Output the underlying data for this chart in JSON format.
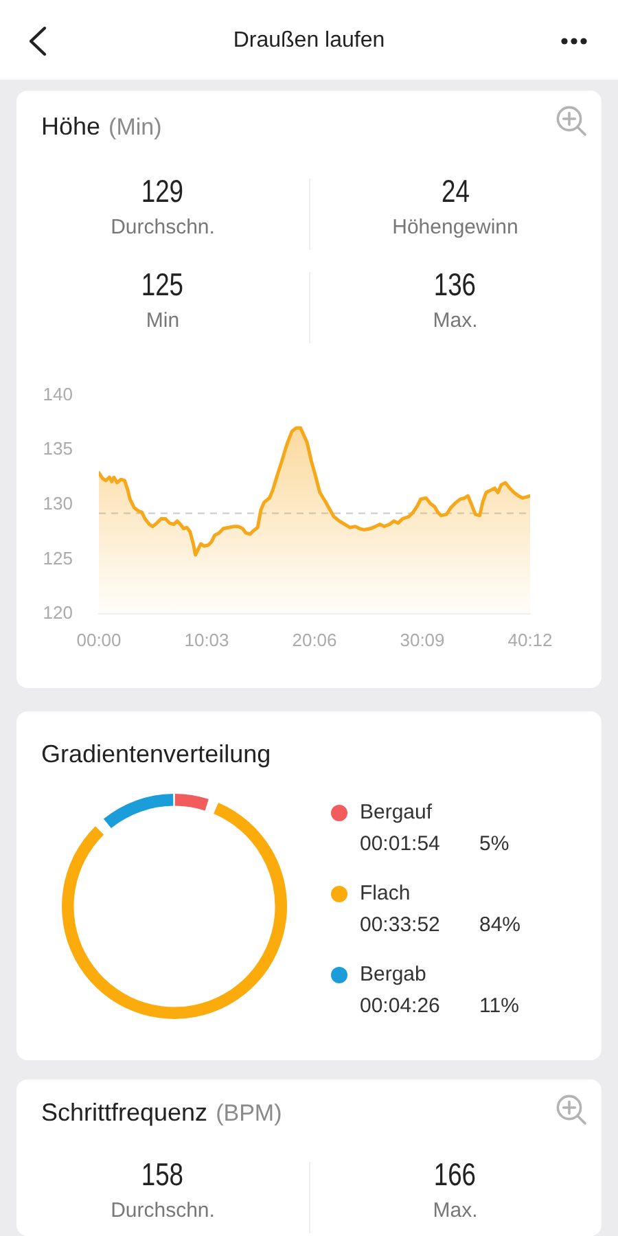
{
  "chart_data": [
    {
      "type": "other",
      "title": "Draußen laufen"
    },
    {
      "type": "area",
      "title": "Höhe",
      "subtitle": "(Min)",
      "annotations": [
        "129",
        "Durchschn.",
        "24",
        "Höhengewinn",
        "125",
        "Min",
        "136",
        "Max."
      ],
      "x": [
        0,
        0.34,
        0.64,
        0.98,
        1.2,
        1.4,
        1.7,
        2.05,
        2.4,
        2.7,
        2.9,
        3.3,
        3.7,
        4.0,
        4.3,
        4.7,
        5.0,
        5.4,
        5.8,
        6.2,
        6.6,
        7.0,
        7.3,
        7.6,
        7.9,
        8.2,
        8.5,
        8.8,
        9.0,
        9.2,
        9.5,
        9.8,
        10.2,
        10.5,
        10.8,
        11.2,
        11.6,
        12.1,
        12.6,
        13.0,
        13.4,
        13.7,
        14.1,
        14.4,
        14.8,
        15.1,
        15.4,
        15.9,
        16.2,
        16.6,
        17.0,
        17.4,
        17.6,
        18.0,
        18.4,
        18.8,
        19.4,
        19.8,
        20.2,
        20.6,
        21.1,
        21.5,
        21.9,
        22.4,
        22.9,
        23.4,
        23.9,
        24.3,
        24.7,
        25.3,
        25.8,
        26.2,
        26.6,
        27.1,
        27.5,
        27.9,
        28.3,
        28.9,
        29.3,
        29.7,
        30.0,
        30.5,
        30.9,
        31.3,
        31.6,
        31.9,
        32.4,
        32.8,
        33.3,
        33.7,
        34.1,
        34.4,
        34.7,
        35.1,
        35.5,
        35.8,
        36.1,
        36.5,
        36.9,
        37.2,
        37.5,
        37.9,
        38.3,
        38.7,
        39.1,
        39.5,
        39.9,
        40.2
      ],
      "values": [
        132.9,
        132.4,
        132.2,
        132.5,
        132.1,
        132.5,
        132.0,
        132.3,
        132.2,
        131.3,
        130.5,
        129.7,
        129.4,
        129.3,
        128.7,
        128.2,
        128.0,
        128.3,
        128.7,
        128.7,
        128.3,
        128.2,
        128.5,
        128.2,
        127.8,
        127.9,
        127.5,
        126.4,
        125.4,
        125.8,
        126.4,
        126.2,
        126.3,
        126.6,
        127.2,
        127.4,
        127.8,
        127.9,
        128.0,
        128.0,
        127.8,
        127.4,
        127.3,
        127.6,
        127.9,
        129.5,
        130.2,
        130.6,
        131.3,
        132.6,
        133.8,
        135.1,
        135.7,
        136.7,
        137.0,
        137.0,
        135.7,
        134.0,
        132.6,
        131.1,
        130.3,
        129.6,
        128.9,
        128.5,
        128.2,
        127.9,
        128.0,
        127.8,
        127.7,
        127.8,
        128.0,
        128.2,
        128.0,
        128.2,
        128.5,
        128.3,
        128.7,
        128.9,
        129.3,
        129.9,
        130.5,
        130.6,
        130.1,
        129.8,
        129.3,
        129.0,
        129.1,
        129.7,
        130.2,
        130.5,
        130.6,
        130.8,
        130.1,
        129.1,
        129.0,
        130.3,
        131.1,
        131.3,
        131.5,
        131.1,
        131.8,
        132.0,
        131.5,
        131.1,
        130.8,
        130.6,
        130.7,
        130.8
      ],
      "color": "#f6a81c",
      "xlim": [
        0,
        40.2
      ],
      "xticks": [
        {
          "value": 0,
          "label": "00:00"
        },
        {
          "value": 10.05,
          "label": "10:03"
        },
        {
          "value": 20.1,
          "label": "20:06"
        },
        {
          "value": 30.15,
          "label": "30:09"
        },
        {
          "value": 40.2,
          "label": "40:12"
        }
      ],
      "ylim": [
        120,
        140
      ],
      "yticks": [
        120,
        125,
        130,
        135,
        140
      ],
      "ref_lines": [
        {
          "axis": "y",
          "value": 129.2,
          "color": "#c8c8c8",
          "line_style": "dashed"
        }
      ]
    },
    {
      "type": "donut",
      "title": "Gradientenverteilung",
      "categories": [
        "Bergauf",
        "Flach",
        "Bergab"
      ],
      "values": [
        5,
        84,
        11
      ],
      "colors": [
        "#f25c5c",
        "#fcab0c",
        "#1a9dd9"
      ],
      "annotations": [
        "00:01:54",
        "5%",
        "00:33:52",
        "84%",
        "00:04:26",
        "11%"
      ],
      "legend": "right"
    },
    {
      "type": "other",
      "title": "Schrittfrequenz",
      "subtitle": "(BPM)",
      "annotations": [
        "158",
        "Durchschn.",
        "166",
        "Max."
      ]
    }
  ]
}
